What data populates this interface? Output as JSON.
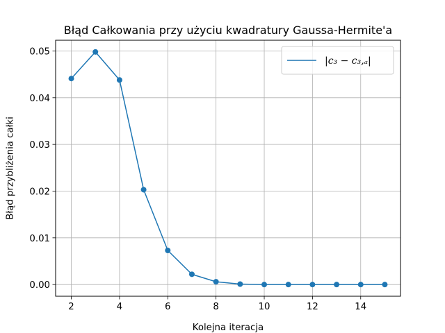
{
  "chart_data": {
    "type": "line",
    "title": "Błąd Całkowania przy użyciu kwadratury Gaussa-Hermite'a",
    "xlabel": "Kolejna iteracja",
    "ylabel": "Błąd przybliżenia całki",
    "x": [
      2,
      3,
      4,
      5,
      6,
      7,
      8,
      9,
      10,
      11,
      12,
      13,
      14,
      15
    ],
    "series": [
      {
        "name": "|c₃ − c₃,ₐ|",
        "values": [
          0.0441,
          0.0498,
          0.0438,
          0.0203,
          0.0073,
          0.0022,
          0.0006,
          0.0001,
          0.0,
          0.0,
          0.0,
          0.0,
          0.0,
          0.0
        ],
        "color": "#1f77b4",
        "marker": "circle"
      }
    ],
    "xlim": [
      1.35,
      15.65
    ],
    "ylim": [
      -0.0025,
      0.0523
    ],
    "xticks": [
      2,
      4,
      6,
      8,
      10,
      12,
      14
    ],
    "xtick_labels": [
      "2",
      "4",
      "6",
      "8",
      "10",
      "12",
      "14"
    ],
    "yticks": [
      0.0,
      0.01,
      0.02,
      0.03,
      0.04,
      0.05
    ],
    "ytick_labels": [
      "0.00",
      "0.01",
      "0.02",
      "0.03",
      "0.04",
      "0.05"
    ],
    "grid": true,
    "legend_position": "top-right"
  }
}
